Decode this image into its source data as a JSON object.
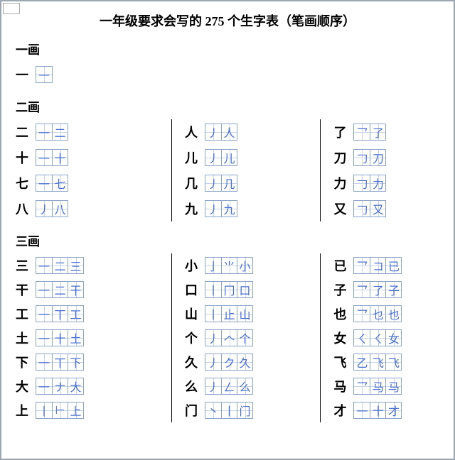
{
  "title": "一年级要求会写的 275 个生字表（笔画顺序）",
  "cell_border_color": "#8aa3c7",
  "cell_guide_color": "#c7d4e8",
  "stroke_glyph_color": "#4a6fd0",
  "page_border_color": "#9ca7b2",
  "sections": [
    {
      "heading": "一画",
      "layout": "single",
      "columns": [
        [
          {
            "char": "一",
            "strokes": [
              "一"
            ]
          }
        ]
      ]
    },
    {
      "heading": "二画",
      "layout": "three",
      "columns": [
        [
          {
            "char": "二",
            "strokes": [
              "一",
              "二"
            ]
          },
          {
            "char": "十",
            "strokes": [
              "一",
              "十"
            ]
          },
          {
            "char": "七",
            "strokes": [
              "一",
              "七"
            ]
          },
          {
            "char": "八",
            "strokes": [
              "丿",
              "八"
            ]
          }
        ],
        [
          {
            "char": "人",
            "strokes": [
              "丿",
              "人"
            ]
          },
          {
            "char": "儿",
            "strokes": [
              "丿",
              "儿"
            ]
          },
          {
            "char": "几",
            "strokes": [
              "丿",
              "几"
            ]
          },
          {
            "char": "九",
            "strokes": [
              "丿",
              "九"
            ]
          }
        ],
        [
          {
            "char": "了",
            "strokes": [
              "乛",
              "了"
            ]
          },
          {
            "char": "刀",
            "strokes": [
              "𠃌",
              "刀"
            ]
          },
          {
            "char": "力",
            "strokes": [
              "𠃌",
              "力"
            ]
          },
          {
            "char": "又",
            "strokes": [
              "𠃌",
              "又"
            ]
          }
        ]
      ]
    },
    {
      "heading": "三画",
      "layout": "three",
      "tight": true,
      "columns": [
        [
          {
            "char": "三",
            "strokes": [
              "一",
              "二",
              "三"
            ]
          },
          {
            "char": "干",
            "strokes": [
              "一",
              "二",
              "干"
            ]
          },
          {
            "char": "工",
            "strokes": [
              "一",
              "丅",
              "工"
            ]
          },
          {
            "char": "土",
            "strokes": [
              "一",
              "十",
              "土"
            ]
          },
          {
            "char": "下",
            "strokes": [
              "一",
              "丅",
              "下"
            ]
          },
          {
            "char": "大",
            "strokes": [
              "一",
              "ナ",
              "大"
            ]
          },
          {
            "char": "上",
            "strokes": [
              "丨",
              "⊢",
              "上"
            ]
          }
        ],
        [
          {
            "char": "小",
            "strokes": [
              "亅",
              "⺌",
              "小"
            ]
          },
          {
            "char": "口",
            "strokes": [
              "丨",
              "冂",
              "口"
            ]
          },
          {
            "char": "山",
            "strokes": [
              "丨",
              "止",
              "山"
            ]
          },
          {
            "char": "个",
            "strokes": [
              "丿",
              "𠆢",
              "个"
            ]
          },
          {
            "char": "久",
            "strokes": [
              "丿",
              "ク",
              "久"
            ]
          },
          {
            "char": "么",
            "strokes": [
              "丿",
              "ㄥ",
              "么"
            ]
          },
          {
            "char": "门",
            "strokes": [
              "丶",
              "丨",
              "门"
            ]
          }
        ],
        [
          {
            "char": "已",
            "strokes": [
              "乛",
              "コ",
              "已"
            ]
          },
          {
            "char": "子",
            "strokes": [
              "乛",
              "了",
              "子"
            ]
          },
          {
            "char": "也",
            "strokes": [
              "乛",
              "乜",
              "也"
            ]
          },
          {
            "char": "女",
            "strokes": [
              "ㄑ",
              "ㄑ",
              "女"
            ]
          },
          {
            "char": "飞",
            "strokes": [
              "乙",
              "飞",
              "飞"
            ]
          },
          {
            "char": "马",
            "strokes": [
              "乛",
              "马",
              "马"
            ]
          },
          {
            "char": "才",
            "strokes": [
              "一",
              "十",
              "才"
            ]
          }
        ]
      ]
    }
  ]
}
